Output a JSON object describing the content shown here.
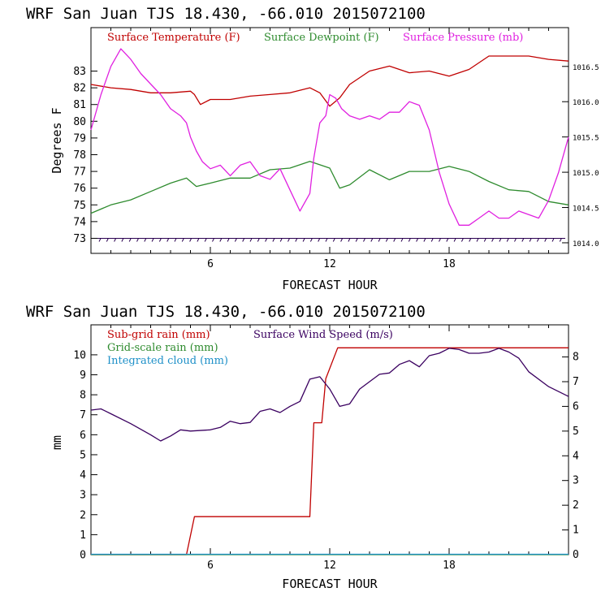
{
  "chart_data": [
    {
      "type": "line",
      "title": "WRF  San Juan TJS  18.430, -66.010  2015072100",
      "xlabel": "FORECAST HOUR",
      "ylabel": "Degrees F",
      "x_ticks": [
        "6",
        "12",
        "18"
      ],
      "xlim": [
        0,
        24
      ],
      "ylim_left": [
        72.1,
        85.6
      ],
      "y_ticks_left": [
        "73",
        "74",
        "75",
        "76",
        "77",
        "78",
        "79",
        "80",
        "81",
        "82",
        "83"
      ],
      "ylim_right": [
        1013.85,
        1017.05
      ],
      "y_ticks_right": [
        "1014.0",
        "1014.5",
        "1015.0",
        "1015.5",
        "1016.0",
        "1016.5"
      ],
      "legend_position": "top",
      "series": [
        {
          "name": "Surface Temperature (F)",
          "color": "#c00000",
          "axis": "left",
          "x": [
            0,
            1,
            2,
            3,
            4,
            5,
            5.2,
            5.5,
            6,
            7,
            8,
            9,
            10,
            11,
            11.5,
            12,
            12.5,
            13,
            14,
            15,
            15.5,
            16,
            17,
            18,
            19,
            20,
            21,
            22,
            23,
            24
          ],
          "y": [
            82.2,
            82.0,
            81.9,
            81.7,
            81.7,
            81.8,
            81.6,
            81.0,
            81.3,
            81.3,
            81.5,
            81.6,
            81.7,
            82.0,
            81.7,
            80.9,
            81.4,
            82.2,
            83.0,
            83.3,
            83.1,
            82.9,
            83.0,
            82.7,
            83.1,
            83.9,
            83.9,
            83.9,
            83.7,
            83.6
          ]
        },
        {
          "name": "Surface Dewpoint (F)",
          "color": "#2e8b2e",
          "axis": "left",
          "x": [
            0,
            1,
            2,
            3,
            4,
            4.8,
            5.3,
            6,
            7,
            8,
            9,
            10,
            11,
            12,
            12.5,
            13,
            14,
            15,
            16,
            17,
            18,
            19,
            20,
            21,
            22,
            23,
            24
          ],
          "y": [
            74.5,
            75.0,
            75.3,
            75.8,
            76.3,
            76.6,
            76.1,
            76.3,
            76.6,
            76.6,
            77.1,
            77.2,
            77.6,
            77.2,
            76.0,
            76.2,
            77.1,
            76.5,
            77.0,
            77.0,
            77.3,
            77.0,
            76.4,
            75.9,
            75.8,
            75.2,
            75.0
          ]
        },
        {
          "name": "Surface Pressure (mb)",
          "color": "#e020e0",
          "axis": "right",
          "x": [
            0,
            0.5,
            1,
            1.5,
            2,
            2.5,
            3,
            3.5,
            4,
            4.5,
            4.8,
            5,
            5.3,
            5.6,
            6,
            6.5,
            7,
            7.5,
            8,
            8.5,
            9,
            9.5,
            10,
            10.5,
            11,
            11.2,
            11.5,
            11.8,
            12,
            12.3,
            12.6,
            13,
            13.5,
            14,
            14.5,
            15,
            15.5,
            16,
            16.5,
            17,
            17.5,
            18,
            18.5,
            19,
            19.5,
            20,
            20.5,
            21,
            21.5,
            22,
            22.5,
            23,
            23.5,
            24
          ],
          "y": [
            1015.6,
            1016.1,
            1016.5,
            1016.75,
            1016.6,
            1016.4,
            1016.25,
            1016.1,
            1015.9,
            1015.8,
            1015.7,
            1015.5,
            1015.3,
            1015.15,
            1015.05,
            1015.1,
            1014.95,
            1015.1,
            1015.15,
            1014.95,
            1014.9,
            1015.05,
            1014.75,
            1014.45,
            1014.7,
            1015.2,
            1015.7,
            1015.8,
            1016.1,
            1016.05,
            1015.9,
            1015.8,
            1015.75,
            1015.8,
            1015.75,
            1015.85,
            1015.85,
            1016.0,
            1015.95,
            1015.6,
            1015.0,
            1014.55,
            1014.25,
            1014.25,
            1014.35,
            1014.45,
            1014.35,
            1014.35,
            1014.45,
            1014.4,
            1014.35,
            1014.6,
            1015.0,
            1015.5
          ]
        }
      ]
    },
    {
      "type": "line",
      "title": "WRF  San Juan TJS  18.430, -66.010  2015072100",
      "xlabel": "FORECAST HOUR",
      "ylabel": "mm",
      "x_ticks": [
        "6",
        "12",
        "18"
      ],
      "xlim": [
        0,
        24
      ],
      "ylim_left": [
        0,
        11.5
      ],
      "y_ticks_left": [
        "0",
        "1",
        "2",
        "3",
        "4",
        "5",
        "6",
        "7",
        "8",
        "9",
        "10"
      ],
      "ylim_right": [
        0,
        9.3
      ],
      "y_ticks_right": [
        "0",
        "1",
        "2",
        "3",
        "4",
        "5",
        "6",
        "7",
        "8"
      ],
      "legend_position": "top",
      "series": [
        {
          "name": "Sub-grid rain (mm)",
          "color": "#c00000",
          "axis": "left",
          "x": [
            0,
            4.8,
            5.2,
            10.2,
            11.0,
            11.2,
            11.6,
            11.8,
            12.4,
            24
          ],
          "y": [
            0,
            0,
            1.9,
            1.9,
            1.9,
            6.6,
            6.6,
            8.8,
            10.35,
            10.35
          ]
        },
        {
          "name": "Grid-scale rain (mm)",
          "color": "#2e8b2e",
          "axis": "left",
          "x": [
            0,
            24
          ],
          "y": [
            0,
            0
          ]
        },
        {
          "name": "Integrated cloud (mm)",
          "color": "#1e90c8",
          "axis": "left",
          "x": [
            0,
            24
          ],
          "y": [
            0.02,
            0.02
          ]
        },
        {
          "name": "Surface Wind Speed (m/s)",
          "color": "#3a0060",
          "axis": "right",
          "x": [
            0,
            0.5,
            1,
            2,
            3,
            3.5,
            4,
            4.5,
            5,
            6,
            6.5,
            7,
            7.5,
            8,
            8.5,
            9,
            9.5,
            10,
            10.5,
            11,
            11.5,
            12,
            12.5,
            13,
            13.5,
            14,
            14.5,
            15,
            15.5,
            16,
            16.5,
            17,
            17.5,
            18,
            18.5,
            19,
            19.5,
            20,
            20.5,
            21,
            21.5,
            22,
            23,
            24
          ],
          "y": [
            5.85,
            5.9,
            5.7,
            5.3,
            4.85,
            4.6,
            4.8,
            5.05,
            5.0,
            5.05,
            5.15,
            5.4,
            5.3,
            5.35,
            5.8,
            5.9,
            5.75,
            6.0,
            6.2,
            7.1,
            7.2,
            6.7,
            6.0,
            6.1,
            6.7,
            7.0,
            7.3,
            7.35,
            7.7,
            7.85,
            7.6,
            8.05,
            8.15,
            8.35,
            8.3,
            8.15,
            8.15,
            8.2,
            8.35,
            8.2,
            7.95,
            7.4,
            6.8,
            6.4
          ]
        }
      ]
    }
  ]
}
